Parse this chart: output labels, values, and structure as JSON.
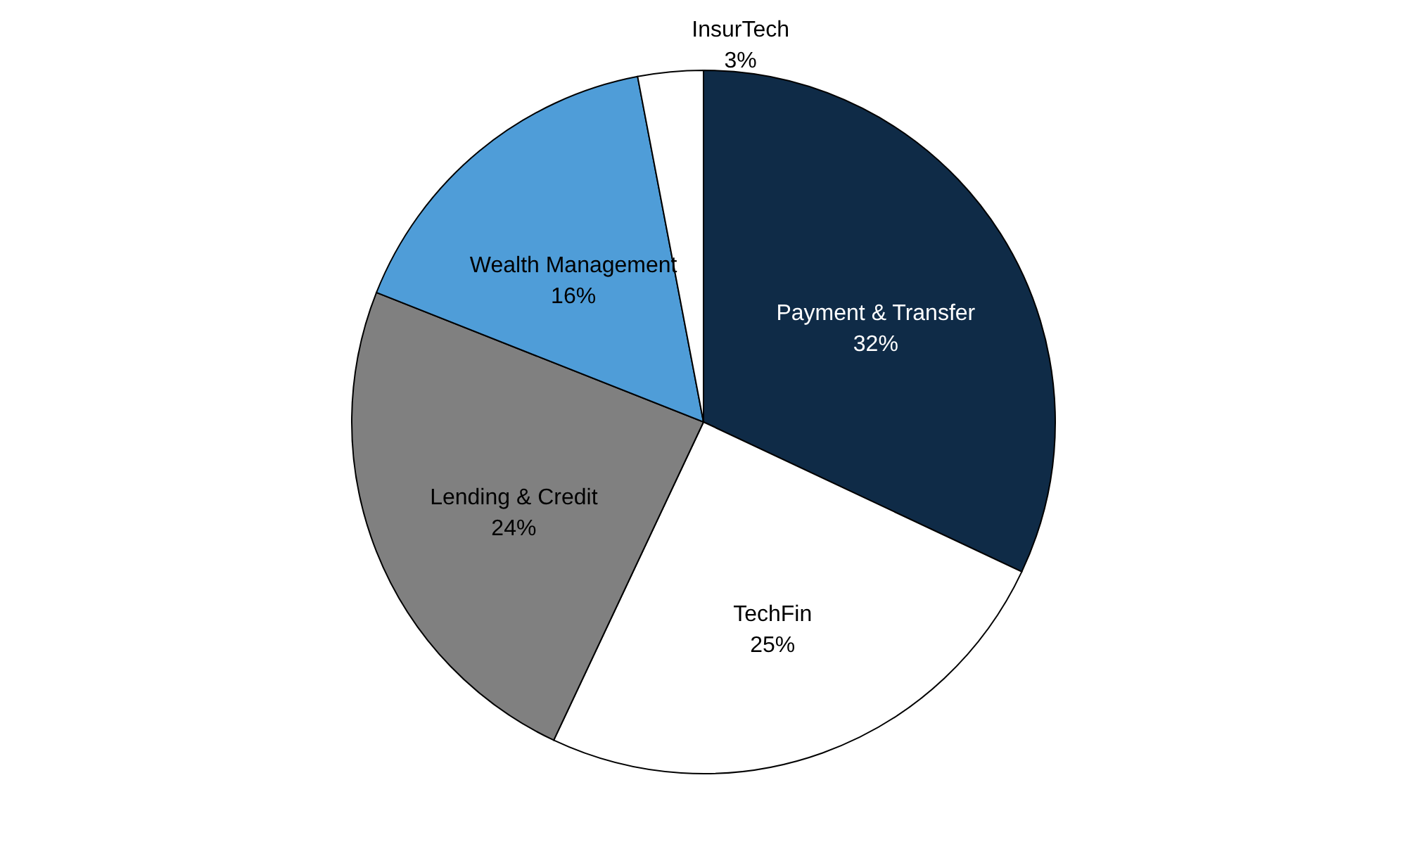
{
  "chart_data": {
    "type": "pie",
    "categories": [
      "Payment & Transfer",
      "TechFin",
      "Lending & Credit",
      "Wealth Management",
      "InsurTech"
    ],
    "values": [
      32,
      25,
      24,
      16,
      3
    ],
    "value_labels": [
      "32%",
      "25%",
      "24%",
      "16%",
      "3%"
    ],
    "colors": [
      "#0f2b47",
      "#ffffff",
      "#808080",
      "#4f9dd8",
      "#ffffff"
    ]
  }
}
